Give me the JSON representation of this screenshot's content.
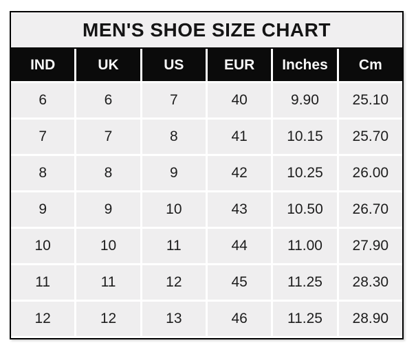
{
  "chart_data": {
    "type": "table",
    "title": "MEN'S SHOE SIZE CHART",
    "columns": [
      "IND",
      "UK",
      "US",
      "EUR",
      "Inches",
      "Cm"
    ],
    "rows": [
      [
        "6",
        "6",
        "7",
        "40",
        "9.90",
        "25.10"
      ],
      [
        "7",
        "7",
        "8",
        "41",
        "10.15",
        "25.70"
      ],
      [
        "8",
        "8",
        "9",
        "42",
        "10.25",
        "26.00"
      ],
      [
        "9",
        "9",
        "10",
        "43",
        "10.50",
        "26.70"
      ],
      [
        "10",
        "10",
        "11",
        "44",
        "11.00",
        "27.90"
      ],
      [
        "11",
        "11",
        "12",
        "45",
        "11.25",
        "28.30"
      ],
      [
        "12",
        "12",
        "13",
        "46",
        "11.25",
        "28.90"
      ]
    ],
    "colors": {
      "title_bg": "#f0eff0",
      "header_bg": "#0b0b0b",
      "header_text": "#f7f7f7",
      "cell_bg": "#efeeef",
      "cell_text": "#1d1d1d",
      "border": "#000000",
      "gap": "#ffffff",
      "page_bg": "#ffffff"
    }
  }
}
